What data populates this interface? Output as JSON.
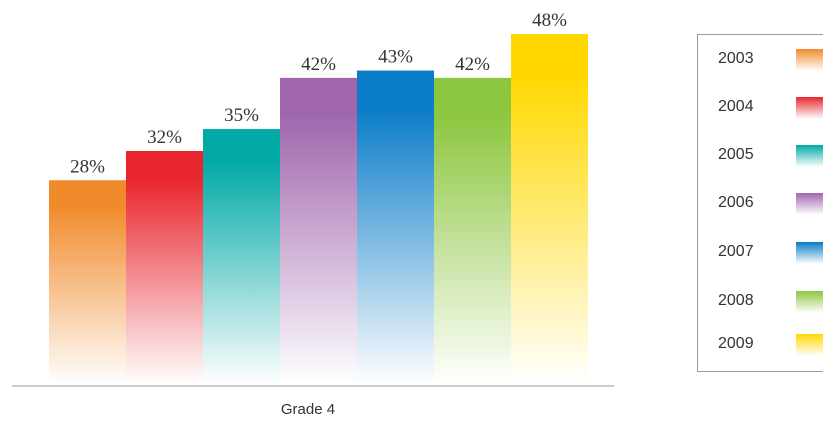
{
  "chart_data": {
    "type": "bar",
    "categories": [
      "Grade 4"
    ],
    "xlabel": "Grade 4",
    "ylim": [
      0,
      50
    ],
    "grid": false,
    "legend_position": "right",
    "series": [
      {
        "name": "2003",
        "values": [
          28
        ],
        "label": "28%",
        "color": "#f08a2a"
      },
      {
        "name": "2004",
        "values": [
          32
        ],
        "label": "32%",
        "color": "#e8262d"
      },
      {
        "name": "2005",
        "values": [
          35
        ],
        "label": "35%",
        "color": "#00a9a6"
      },
      {
        "name": "2006",
        "values": [
          42
        ],
        "label": "42%",
        "color": "#a066ad"
      },
      {
        "name": "2007",
        "values": [
          43
        ],
        "label": "43%",
        "color": "#0a7cc8"
      },
      {
        "name": "2008",
        "values": [
          42
        ],
        "label": "42%",
        "color": "#8dc63f"
      },
      {
        "name": "2009",
        "values": [
          48
        ],
        "label": "48%",
        "color": "#ffd800"
      }
    ]
  }
}
